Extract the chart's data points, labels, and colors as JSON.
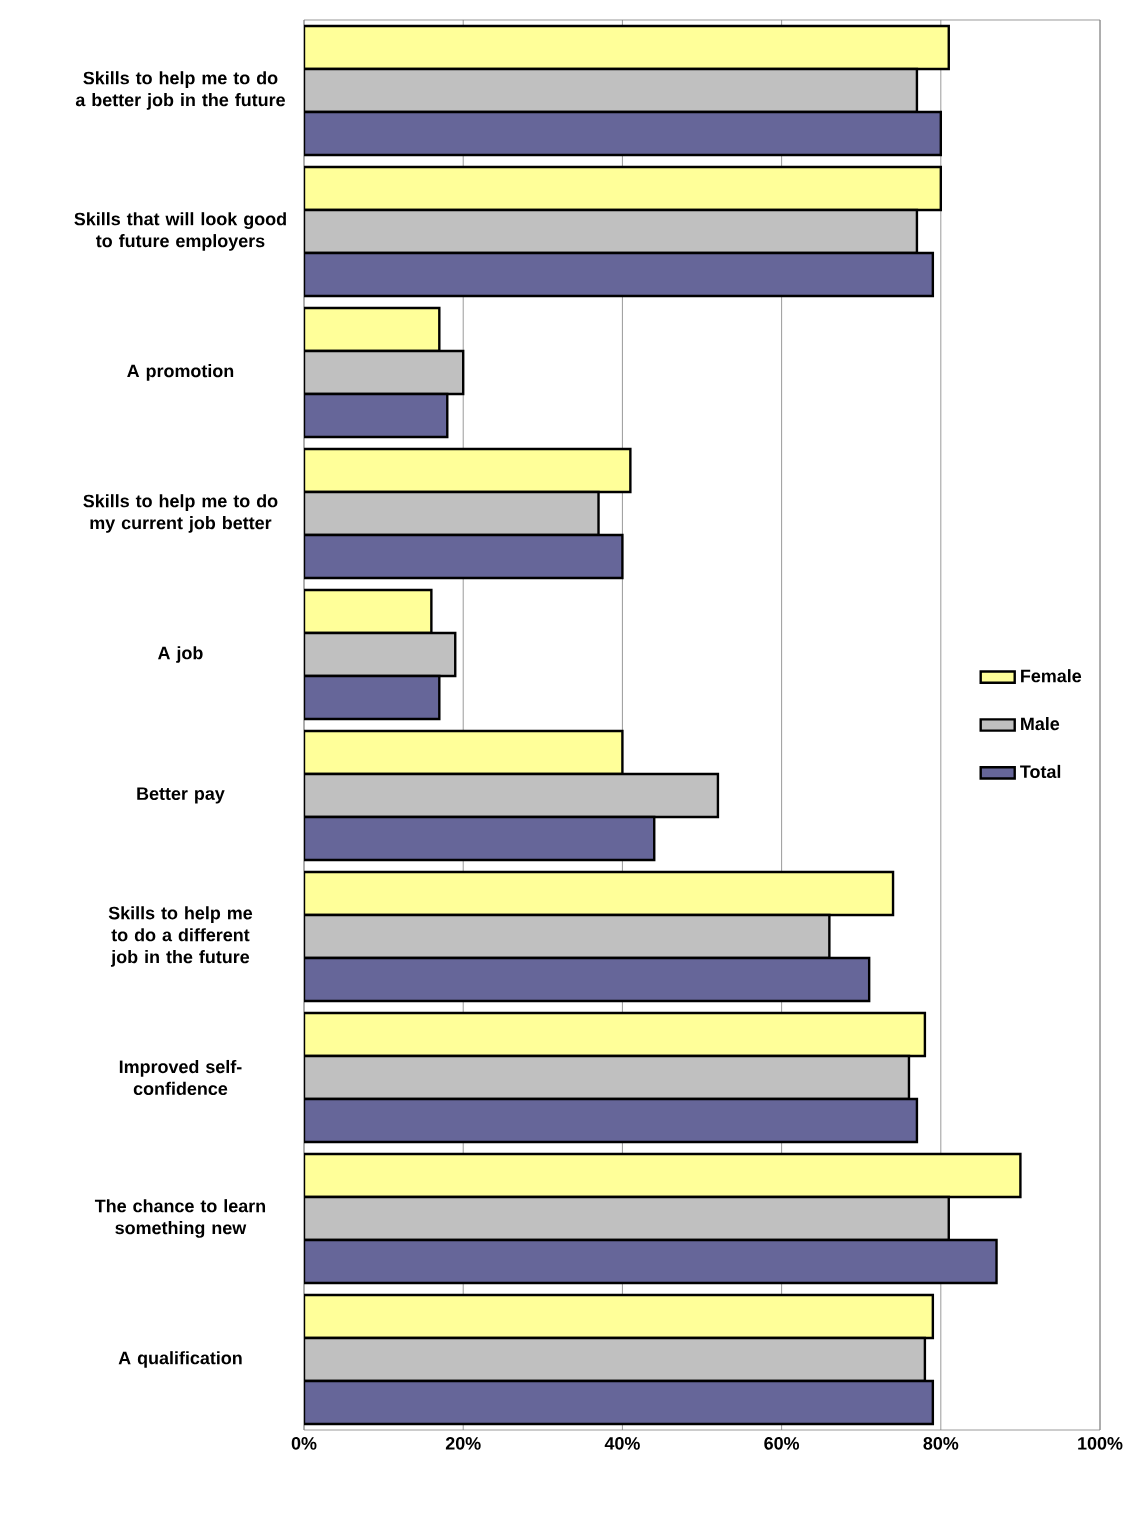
{
  "chart_data": {
    "type": "bar",
    "orientation": "horizontal",
    "categories": [
      "Skills to help me to do a better job in the future",
      "Skills that will look good to future employers",
      "A promotion",
      "Skills to help me to do my current job better",
      "A job",
      "Better pay",
      "Skills to help me to do a different job in the future",
      "Improved self-confidence",
      "The chance to learn something new",
      "A qualification"
    ],
    "series": [
      {
        "name": "Female",
        "color": "#ffff99",
        "values": [
          81,
          80,
          17,
          41,
          16,
          40,
          74,
          78,
          90,
          79
        ]
      },
      {
        "name": "Male",
        "color": "#c0c0c0",
        "values": [
          77,
          77,
          20,
          37,
          19,
          52,
          66,
          76,
          81,
          78
        ]
      },
      {
        "name": "Total",
        "color": "#666699",
        "values": [
          80,
          79,
          18,
          40,
          17,
          44,
          71,
          77,
          87,
          79
        ]
      }
    ],
    "xlim": [
      0,
      100
    ],
    "xticks": [
      {
        "value": 0,
        "label": "0%"
      },
      {
        "value": 20,
        "label": "20%"
      },
      {
        "value": 40,
        "label": "40%"
      },
      {
        "value": 60,
        "label": "60%"
      },
      {
        "value": 80,
        "label": "80%"
      },
      {
        "value": 100,
        "label": "100%"
      }
    ],
    "grid": "x",
    "legend": "right"
  }
}
